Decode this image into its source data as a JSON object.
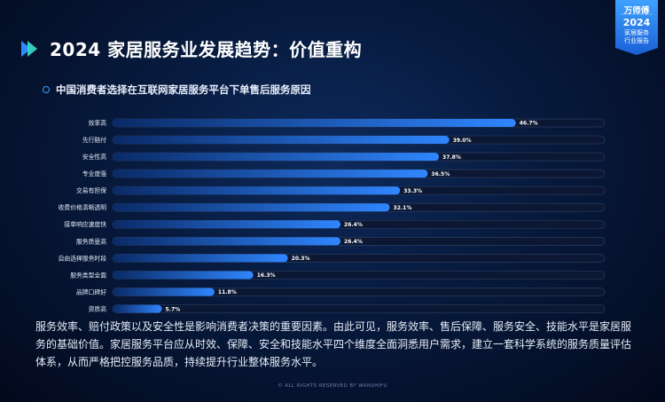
{
  "badge": {
    "brand": "万师傅",
    "year": "2024",
    "line1": "家居服务",
    "line2": "行业报告"
  },
  "header": {
    "title": "2024 家居服务业发展趋势：价值重构"
  },
  "chart_data": {
    "type": "bar",
    "orientation": "horizontal",
    "title": "中国消费者选择在互联网家居服务平台下单售后服务原因",
    "xlim": [
      0,
      57
    ],
    "value_suffix": "%",
    "categories": [
      "效率高",
      "先行赔付",
      "安全性高",
      "专业度强",
      "交易有担保",
      "收费价格清晰透明",
      "接单响应速度快",
      "服务质量高",
      "自由选择服务时段",
      "服务类型全面",
      "品牌口碑好",
      "资质高"
    ],
    "values": [
      46.7,
      39.0,
      37.8,
      36.5,
      33.3,
      32.1,
      26.4,
      26.4,
      20.3,
      16.3,
      11.8,
      5.7
    ],
    "colors": {
      "bar_start": "#0a2a66",
      "bar_end": "#2f86ff",
      "track": "#0c1833",
      "track_border": "#2a3a5c"
    }
  },
  "summary": "服务效率、赔付政策以及安全性是影响消费者决策的重要因素。由此可见，服务效率、售后保障、服务安全、技能水平是家居服务的基础价值。家居服务平台应从时效、保障、安全和技能水平四个维度全面洞悉用户需求，建立一套科学系统的服务质量评估体系，从而严格把控服务品质，持续提升行业整体服务水平。",
  "footer": "© ALL RIGHTS RESERVED BY WANSHIFU"
}
